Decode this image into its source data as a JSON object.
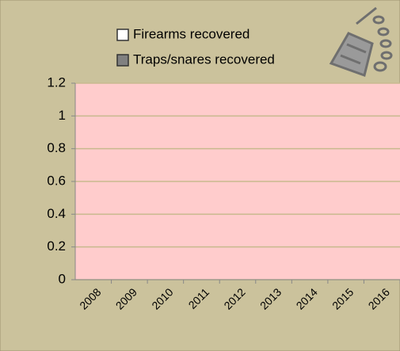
{
  "chart_data": {
    "type": "bar",
    "categories": [
      "2008",
      "2009",
      "2010",
      "2011",
      "2012",
      "2013",
      "2014",
      "2015",
      "2016"
    ],
    "series": [
      {
        "name": "Firearms recovered",
        "color": "#ffffff",
        "values": [
          0,
          0,
          0,
          0,
          0,
          0,
          0,
          0,
          0
        ]
      },
      {
        "name": "Traps/snares recovered",
        "color": "#808080",
        "values": [
          0,
          0,
          0,
          0,
          0,
          0,
          0,
          0,
          0
        ]
      }
    ],
    "ylim": [
      0,
      1.2
    ],
    "yticks": [
      0,
      0.2,
      0.4,
      0.6,
      0.8,
      1,
      1.2
    ],
    "grid": true
  }
}
